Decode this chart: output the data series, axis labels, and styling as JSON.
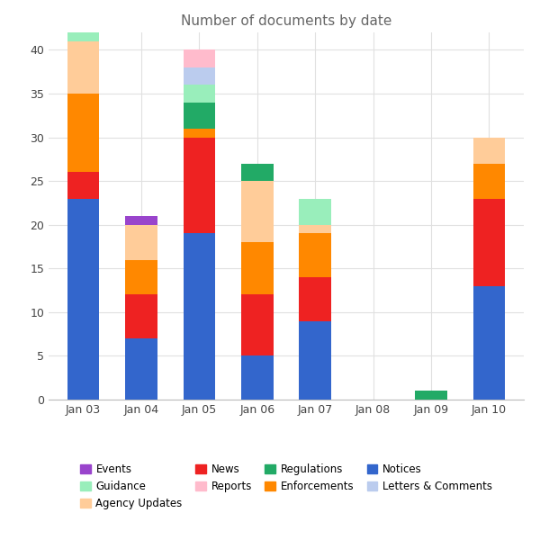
{
  "title": "Number of documents by date",
  "dates": [
    "Jan 03",
    "Jan 04",
    "Jan 05",
    "Jan 06",
    "Jan 07",
    "Jan 08",
    "Jan 09",
    "Jan 10"
  ],
  "colors": {
    "Notices": "#3366CC",
    "News": "#EE2222",
    "Enforcements": "#FF8800",
    "Agency Updates": "#FFCC99",
    "Regulations": "#22AA66",
    "Guidance": "#99EEBB",
    "Letters & Comments": "#BBCCEE",
    "Reports": "#FFBBCC",
    "Events": "#9944CC"
  },
  "stack_order": [
    "Notices",
    "News",
    "Enforcements",
    "Agency Updates",
    "Regulations",
    "Guidance",
    "Letters & Comments",
    "Reports",
    "Events"
  ],
  "values": {
    "Notices": [
      23,
      7,
      19,
      5,
      9,
      0,
      0,
      13
    ],
    "News": [
      3,
      5,
      11,
      7,
      5,
      0,
      0,
      10
    ],
    "Enforcements": [
      9,
      4,
      1,
      6,
      5,
      0,
      0,
      4
    ],
    "Agency Updates": [
      6,
      4,
      0,
      7,
      1,
      0,
      0,
      3
    ],
    "Regulations": [
      0,
      0,
      3,
      2,
      0,
      0,
      1,
      0
    ],
    "Guidance": [
      1,
      0,
      2,
      0,
      3,
      0,
      0,
      0
    ],
    "Letters & Comments": [
      0,
      0,
      2,
      0,
      0,
      0,
      0,
      0
    ],
    "Reports": [
      0,
      0,
      2,
      0,
      0,
      0,
      0,
      0
    ],
    "Events": [
      0,
      1,
      0,
      0,
      0,
      0,
      0,
      0
    ]
  },
  "legend_order": [
    "Events",
    "Guidance",
    "Agency Updates",
    "News",
    "Reports",
    "Regulations",
    "Enforcements",
    "Notices",
    "Letters & Comments"
  ],
  "ylim": [
    0,
    42
  ],
  "yticks": [
    0,
    5,
    10,
    15,
    20,
    25,
    30,
    35,
    40
  ],
  "bar_width": 0.55,
  "figsize": [
    6.0,
    6.0
  ],
  "dpi": 100
}
